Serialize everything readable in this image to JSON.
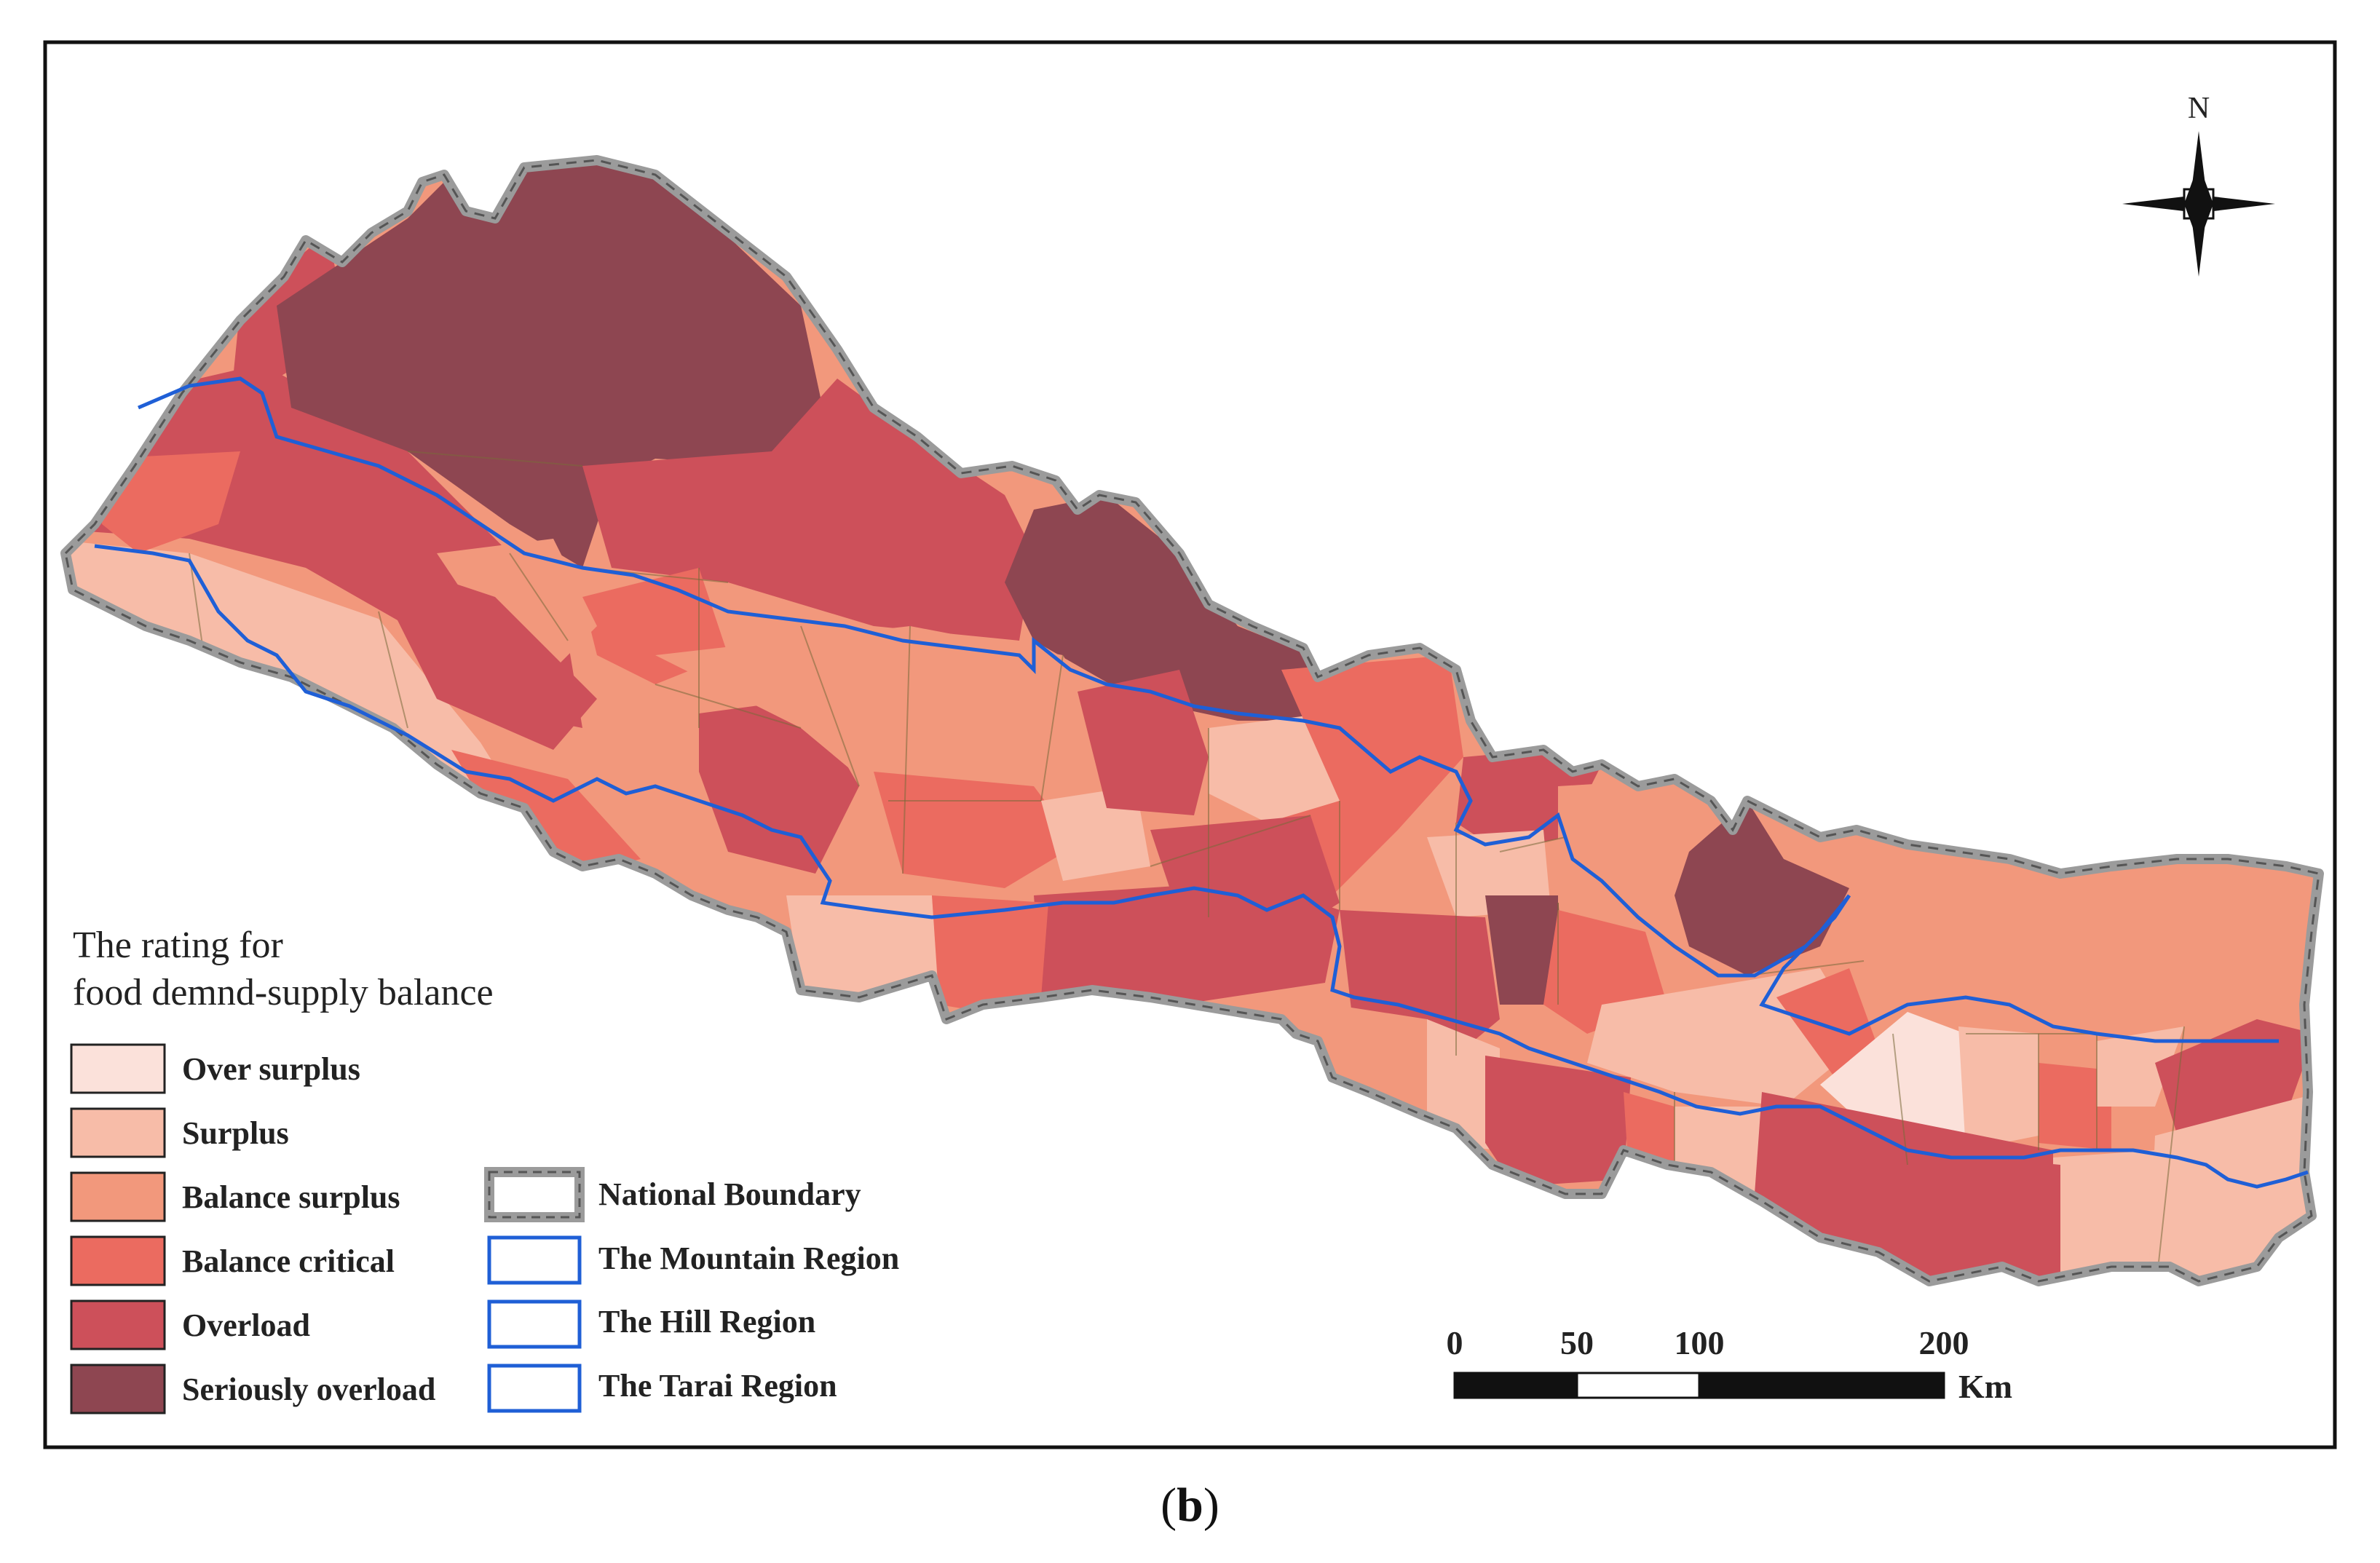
{
  "legend": {
    "title_line1": "The rating for",
    "title_line2": "food demnd-supply balance",
    "classes": [
      {
        "label": "Over surplus",
        "color": "#fbe1da"
      },
      {
        "label": "Surplus",
        "color": "#f7bca8"
      },
      {
        "label": "Balance surplus",
        "color": "#f2987c"
      },
      {
        "label": "Balance critical",
        "color": "#eb6b60"
      },
      {
        "label": "Overload",
        "color": "#cd505a"
      },
      {
        "label": "Seriously overload",
        "color": "#8e4651"
      }
    ],
    "boundaries": [
      {
        "label": "National Boundary"
      },
      {
        "label": "The Mountain Region"
      },
      {
        "label": "The Hill Region"
      },
      {
        "label": "The Tarai Region"
      }
    ]
  },
  "north_arrow": {
    "label": "N"
  },
  "scale_bar": {
    "ticks": [
      "0",
      "50",
      "100",
      "200"
    ],
    "unit": "Km"
  },
  "caption": {
    "open": "(",
    "letter": "b",
    "close": ")"
  },
  "colors": {
    "national_boundary": "#9b9b9b",
    "region_line": "#1f5fd6",
    "district_line": "#7a6a3a"
  }
}
